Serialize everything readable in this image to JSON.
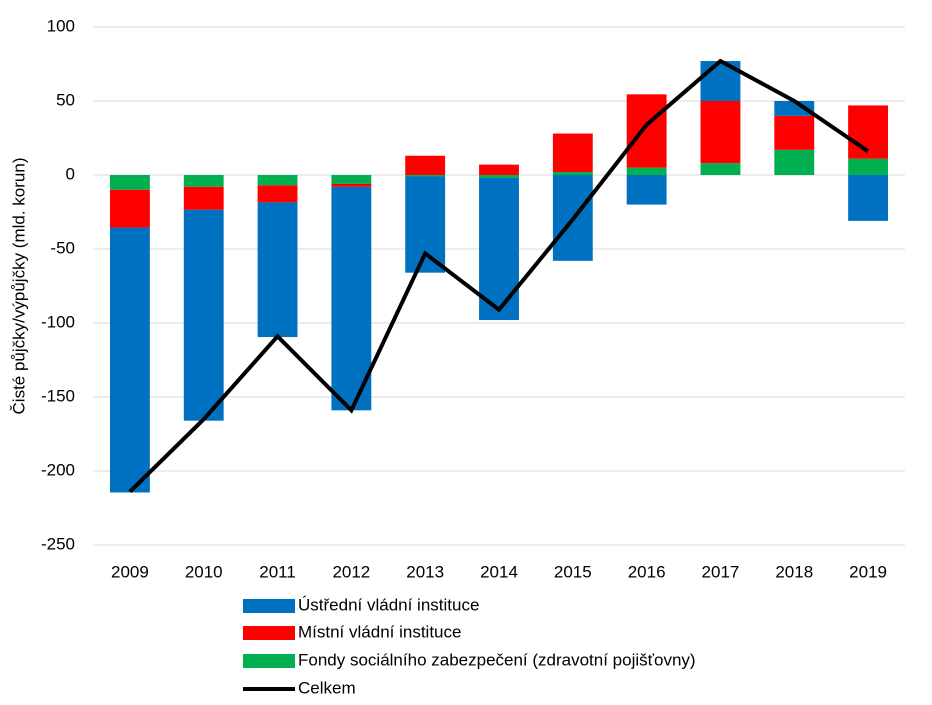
{
  "chart_data": {
    "type": "stacked_bar_line",
    "y_label": "Čisté půjčky/výpůjčky (mld. korun)",
    "categories": [
      "2009",
      "2010",
      "2011",
      "2012",
      "2013",
      "2014",
      "2015",
      "2016",
      "2017",
      "2018",
      "2019"
    ],
    "series": [
      {
        "name": "Ústřední vládní instituce",
        "color": "#0070c0",
        "values": [
          -179,
          -142.5,
          -91,
          -151,
          -65,
          -96,
          -58,
          -20,
          27,
          10,
          -31
        ]
      },
      {
        "name": "Místní vládní instituce",
        "color": "#ff0000",
        "values": [
          -25.5,
          -15.5,
          -11.5,
          -2,
          13,
          7,
          26,
          49.5,
          42,
          23,
          36
        ]
      },
      {
        "name": "Fondy sociálního zabezpečení (zdravotní pojišťovny)",
        "color": "#00b050",
        "values": [
          -10,
          -8,
          -7,
          -6,
          -1,
          -2,
          2,
          5,
          8,
          17,
          11
        ]
      }
    ],
    "line": {
      "name": "Celkem",
      "color": "#000000",
      "values": [
        -214,
        -165,
        -109,
        -159,
        -53,
        -91,
        -30,
        34,
        77,
        50,
        16
      ]
    },
    "ylim": [
      -250,
      100
    ],
    "yticks": [
      -250,
      -200,
      -150,
      -100,
      -50,
      0,
      50,
      100
    ],
    "grid": true
  }
}
